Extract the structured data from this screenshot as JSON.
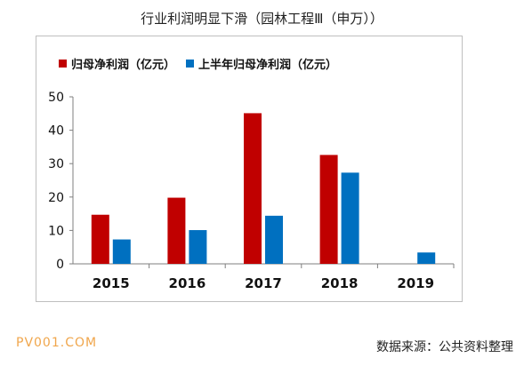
{
  "title": "行业利润明显下滑（园林工程Ⅲ（申万））",
  "source": "数据来源：公共资料整理",
  "watermark": "PV001.COM",
  "chart_data": {
    "type": "bar",
    "categories": [
      "2015",
      "2016",
      "2017",
      "2018",
      "2019"
    ],
    "series": [
      {
        "name": "归母净利润（亿元）",
        "color": "#c00000",
        "values": [
          14.7,
          19.8,
          45.1,
          32.6,
          null
        ]
      },
      {
        "name": "上半年归母净利润（亿元）",
        "color": "#0070c0",
        "values": [
          7.3,
          10.1,
          14.4,
          27.3,
          3.4
        ]
      }
    ],
    "ylim": [
      0,
      50
    ],
    "yticks": [
      "0",
      "10",
      "20",
      "30",
      "40",
      "50"
    ],
    "grid": false,
    "legend": "top-left",
    "xlabel": "",
    "ylabel": ""
  }
}
